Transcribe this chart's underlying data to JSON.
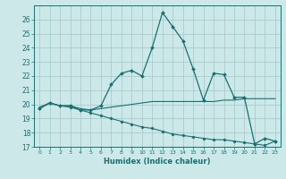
{
  "title": "",
  "xlabel": "Humidex (Indice chaleur)",
  "bg_color": "#cce8e8",
  "grid_color": "#aacccc",
  "line_color": "#1a7070",
  "xlim": [
    -0.5,
    23.5
  ],
  "ylim": [
    17,
    27
  ],
  "yticks": [
    17,
    18,
    19,
    20,
    21,
    22,
    23,
    24,
    25,
    26
  ],
  "xticks": [
    0,
    1,
    2,
    3,
    4,
    5,
    6,
    7,
    8,
    9,
    10,
    11,
    12,
    13,
    14,
    15,
    16,
    17,
    18,
    19,
    20,
    21,
    22,
    23
  ],
  "line1_x": [
    0,
    1,
    2,
    3,
    4,
    5,
    6,
    7,
    8,
    9,
    10,
    11,
    12,
    13,
    14,
    15,
    16,
    17,
    18,
    19,
    20,
    21,
    22,
    23
  ],
  "line1_y": [
    19.7,
    20.1,
    19.9,
    19.9,
    19.6,
    19.6,
    19.9,
    21.4,
    22.2,
    22.4,
    22.0,
    24.0,
    26.5,
    25.5,
    24.5,
    22.5,
    20.3,
    22.2,
    22.1,
    20.5,
    20.5,
    17.2,
    17.6,
    17.4
  ],
  "line2_x": [
    0,
    1,
    2,
    3,
    4,
    5,
    6,
    7,
    8,
    9,
    10,
    11,
    12,
    13,
    14,
    15,
    16,
    17,
    18,
    19,
    20,
    21,
    22,
    23
  ],
  "line2_y": [
    19.8,
    20.1,
    19.9,
    19.9,
    19.7,
    19.6,
    19.7,
    19.8,
    19.9,
    20.0,
    20.1,
    20.2,
    20.2,
    20.2,
    20.2,
    20.2,
    20.2,
    20.2,
    20.3,
    20.3,
    20.4,
    20.4,
    20.4,
    20.4
  ],
  "line3_x": [
    0,
    1,
    2,
    3,
    4,
    5,
    6,
    7,
    8,
    9,
    10,
    11,
    12,
    13,
    14,
    15,
    16,
    17,
    18,
    19,
    20,
    21,
    22,
    23
  ],
  "line3_y": [
    19.7,
    20.1,
    19.9,
    19.8,
    19.6,
    19.4,
    19.2,
    19.0,
    18.8,
    18.6,
    18.4,
    18.3,
    18.1,
    17.9,
    17.8,
    17.7,
    17.6,
    17.5,
    17.5,
    17.4,
    17.3,
    17.2,
    17.1,
    17.4
  ]
}
